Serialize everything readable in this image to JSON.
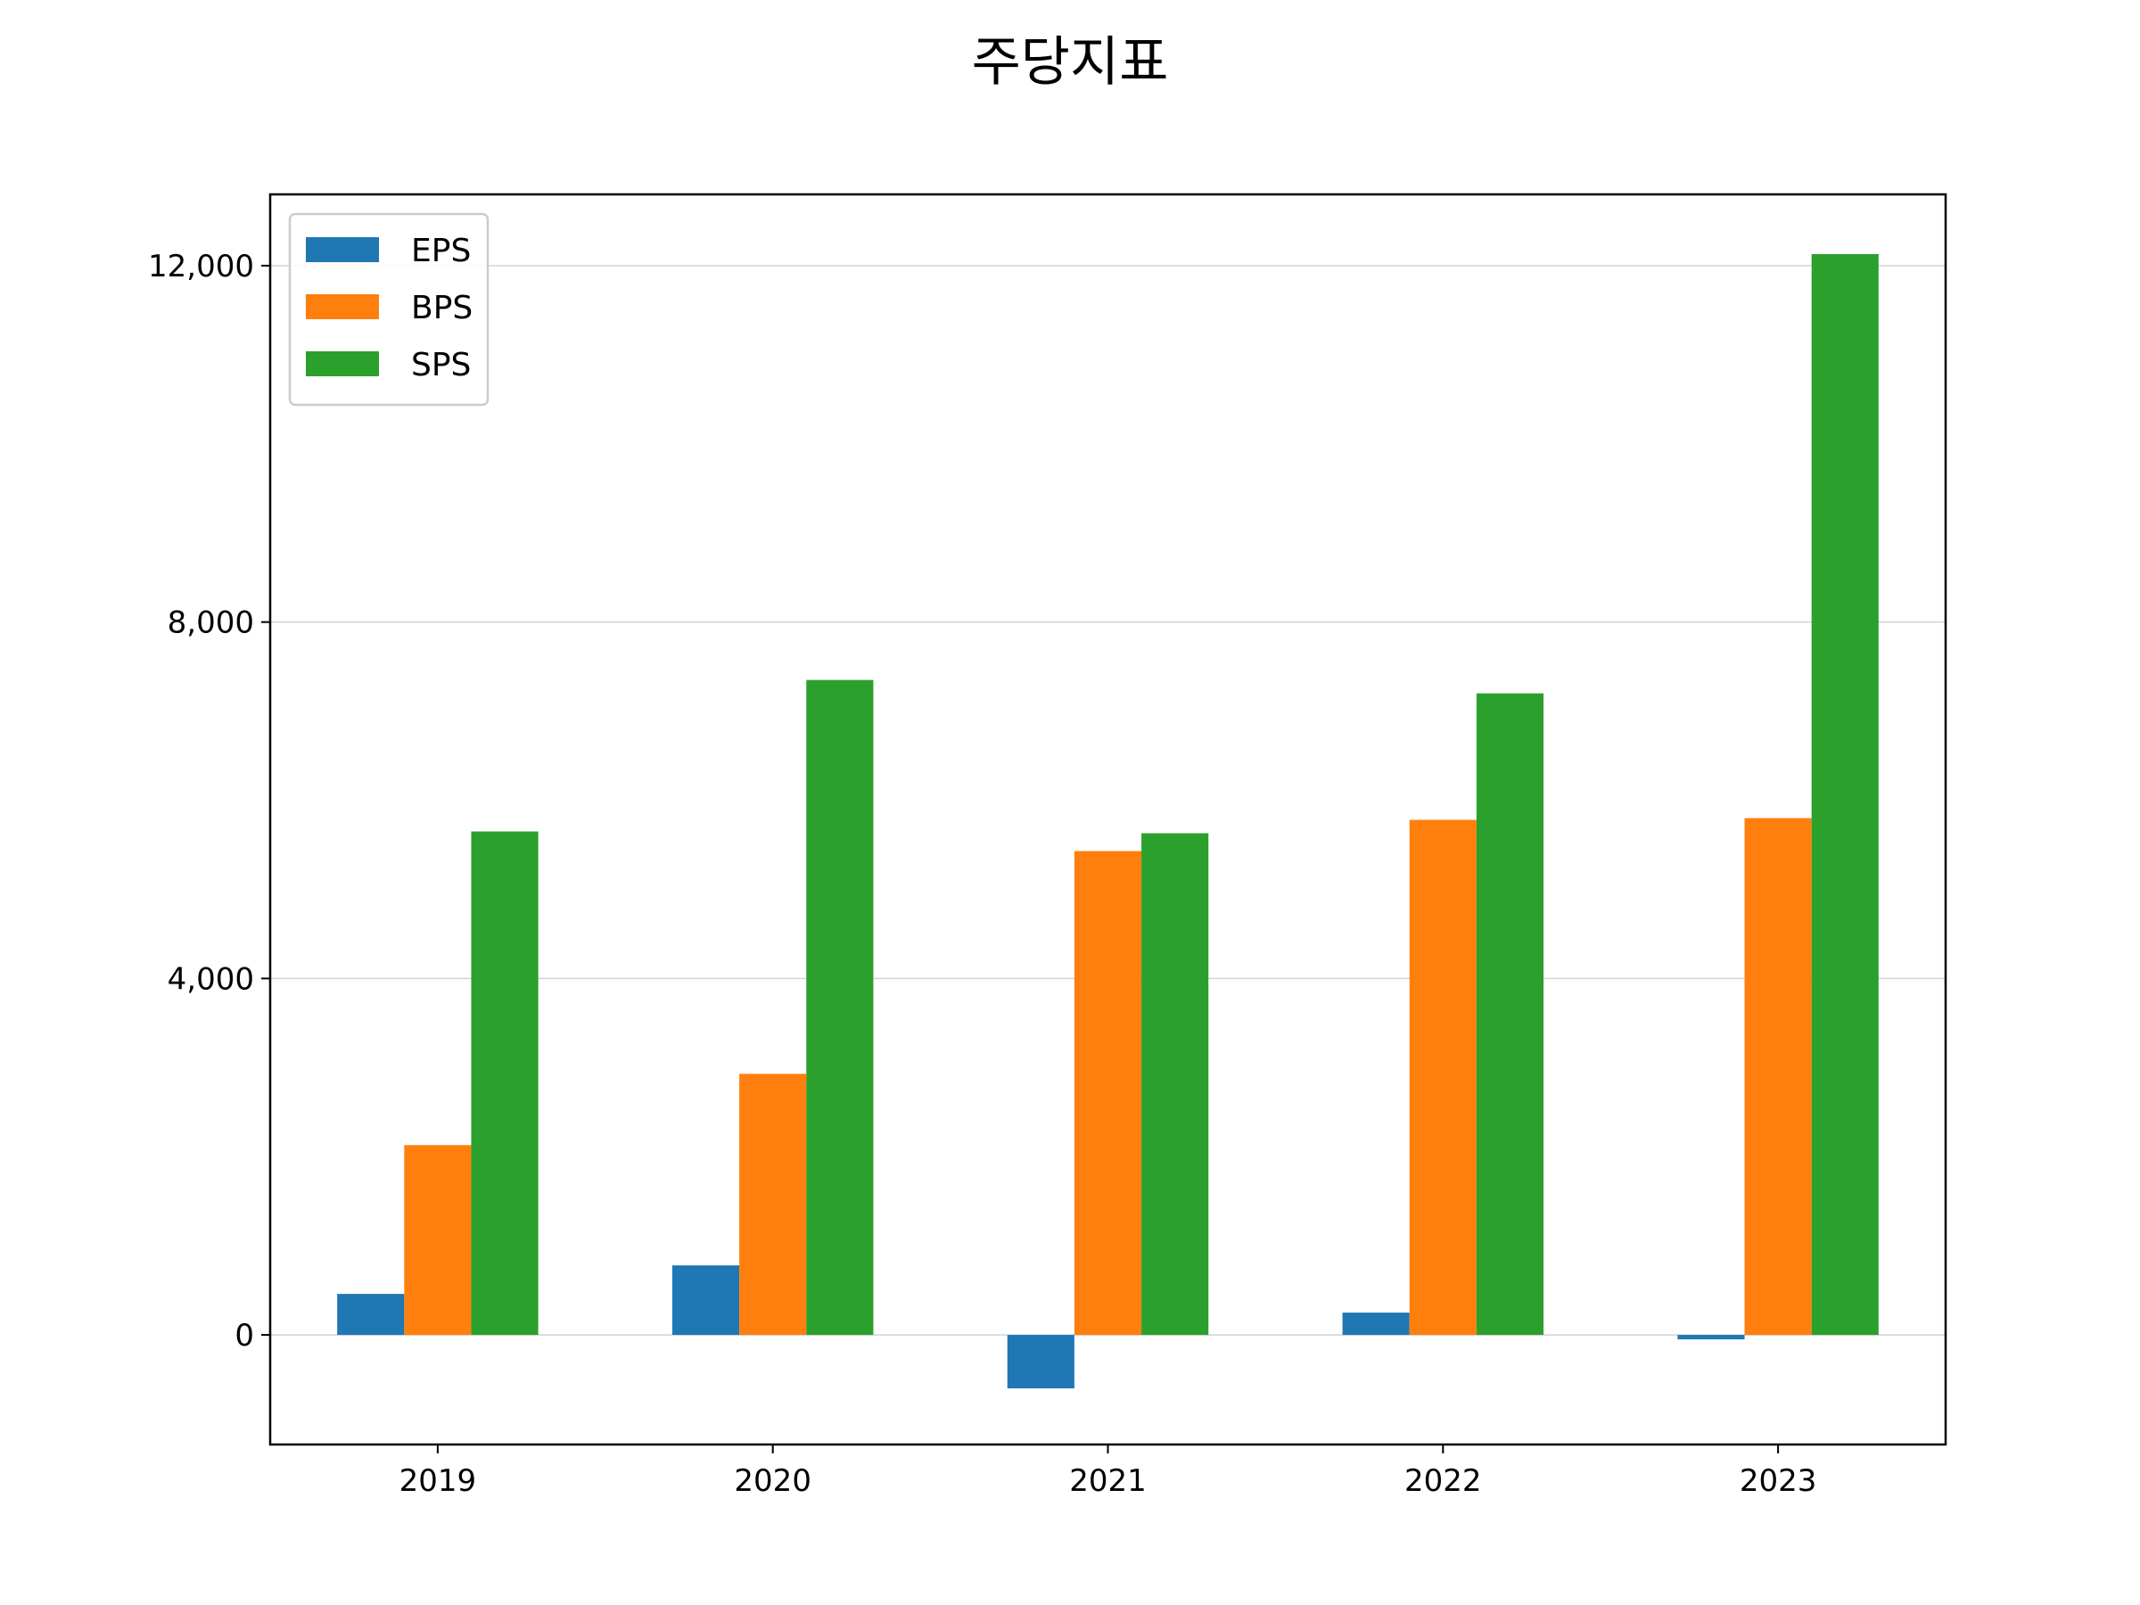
{
  "chart_data": {
    "type": "bar",
    "title": "주당지표",
    "xlabel": "",
    "ylabel": "",
    "categories": [
      "2019",
      "2020",
      "2021",
      "2022",
      "2023"
    ],
    "series": [
      {
        "name": "EPS",
        "color": "#1f77b4",
        "values": [
          460,
          780,
          -600,
          250,
          -50
        ]
      },
      {
        "name": "BPS",
        "color": "#ff7f0e",
        "values": [
          2130,
          2930,
          5430,
          5780,
          5800
        ]
      },
      {
        "name": "SPS",
        "color": "#2ca02c",
        "values": [
          5650,
          7350,
          5630,
          7200,
          12130
        ]
      }
    ],
    "ylim": [
      -1230,
      12800
    ],
    "yticks": [
      0,
      4000,
      8000,
      12000
    ],
    "ytick_labels": [
      "0",
      "4,000",
      "8,000",
      "12,000"
    ],
    "grid": {
      "y": true,
      "x": false
    },
    "legend": {
      "placement": "top-left"
    }
  }
}
